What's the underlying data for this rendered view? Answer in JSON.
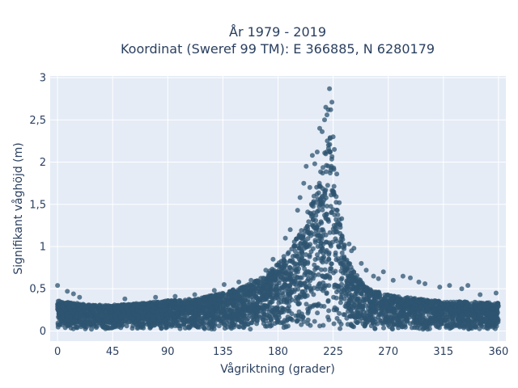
{
  "chart_data": {
    "type": "scatter",
    "title_lines": [
      "År 1979 - 2019",
      "Koordinat (Sweref 99 TM): E 366885, N 6280179"
    ],
    "xlabel": "Vågriktning (grader)",
    "ylabel": "Signifikant våghöjd (m)",
    "xlim": [
      -6,
      366
    ],
    "ylim": [
      -0.12,
      3.02
    ],
    "x_ticks": [
      0,
      45,
      90,
      135,
      180,
      225,
      270,
      315,
      360
    ],
    "x_tick_labels": [
      "0",
      "45",
      "90",
      "135",
      "180",
      "225",
      "270",
      "315",
      "360"
    ],
    "y_ticks": [
      0,
      0.5,
      1,
      1.5,
      2,
      2.5,
      3
    ],
    "y_tick_labels": [
      "0",
      "0,5",
      "1",
      "1,5",
      "2",
      "2,5",
      "3"
    ],
    "grid": true,
    "marker_color": "#2e5470",
    "background": "#e5ecf6",
    "envelope": [
      [
        0,
        0.36
      ],
      [
        10,
        0.34
      ],
      [
        20,
        0.32
      ],
      [
        30,
        0.31
      ],
      [
        45,
        0.31
      ],
      [
        60,
        0.32
      ],
      [
        75,
        0.34
      ],
      [
        90,
        0.36
      ],
      [
        105,
        0.37
      ],
      [
        120,
        0.4
      ],
      [
        135,
        0.46
      ],
      [
        150,
        0.52
      ],
      [
        160,
        0.58
      ],
      [
        170,
        0.66
      ],
      [
        180,
        0.82
      ],
      [
        190,
        0.98
      ],
      [
        200,
        1.22
      ],
      [
        205,
        1.45
      ],
      [
        210,
        1.65
      ],
      [
        215,
        1.9
      ],
      [
        220,
        2.25
      ],
      [
        222,
        2.45
      ],
      [
        224,
        2.2
      ],
      [
        226,
        1.9
      ],
      [
        230,
        1.35
      ],
      [
        235,
        0.95
      ],
      [
        240,
        0.75
      ],
      [
        250,
        0.55
      ],
      [
        260,
        0.47
      ],
      [
        270,
        0.43
      ],
      [
        285,
        0.4
      ],
      [
        300,
        0.37
      ],
      [
        315,
        0.35
      ],
      [
        330,
        0.35
      ],
      [
        345,
        0.34
      ],
      [
        360,
        0.33
      ]
    ],
    "outliers": [
      [
        0,
        0.54
      ],
      [
        8,
        0.47
      ],
      [
        13,
        0.44
      ],
      [
        18,
        0.4
      ],
      [
        55,
        0.38
      ],
      [
        80,
        0.4
      ],
      [
        96,
        0.41
      ],
      [
        112,
        0.43
      ],
      [
        128,
        0.48
      ],
      [
        136,
        0.55
      ],
      [
        148,
        0.58
      ],
      [
        158,
        0.6
      ],
      [
        170,
        0.72
      ],
      [
        176,
        0.85
      ],
      [
        186,
        1.1
      ],
      [
        190,
        1.2
      ],
      [
        196,
        1.43
      ],
      [
        198,
        1.58
      ],
      [
        201,
        1.75
      ],
      [
        203,
        1.95
      ],
      [
        206,
        1.7
      ],
      [
        208,
        2.08
      ],
      [
        210,
        1.98
      ],
      [
        212,
        2.12
      ],
      [
        214,
        2.4
      ],
      [
        216,
        2.36
      ],
      [
        218,
        2.5
      ],
      [
        219,
        2.65
      ],
      [
        220,
        2.56
      ],
      [
        221,
        2.62
      ],
      [
        222,
        2.87
      ],
      [
        223,
        2.62
      ],
      [
        224,
        2.71
      ],
      [
        225,
        2.3
      ],
      [
        226,
        2.15
      ],
      [
        228,
        1.86
      ],
      [
        230,
        1.52
      ],
      [
        232,
        1.33
      ],
      [
        238,
        1.03
      ],
      [
        240,
        0.95
      ],
      [
        242,
        0.98
      ],
      [
        248,
        0.8
      ],
      [
        252,
        0.72
      ],
      [
        258,
        0.65
      ],
      [
        262,
        0.62
      ],
      [
        266,
        0.7
      ],
      [
        274,
        0.6
      ],
      [
        282,
        0.65
      ],
      [
        288,
        0.63
      ],
      [
        295,
        0.58
      ],
      [
        300,
        0.56
      ],
      [
        312,
        0.52
      ],
      [
        320,
        0.54
      ],
      [
        330,
        0.5
      ],
      [
        335,
        0.54
      ],
      [
        345,
        0.43
      ],
      [
        358,
        0.45
      ]
    ]
  }
}
